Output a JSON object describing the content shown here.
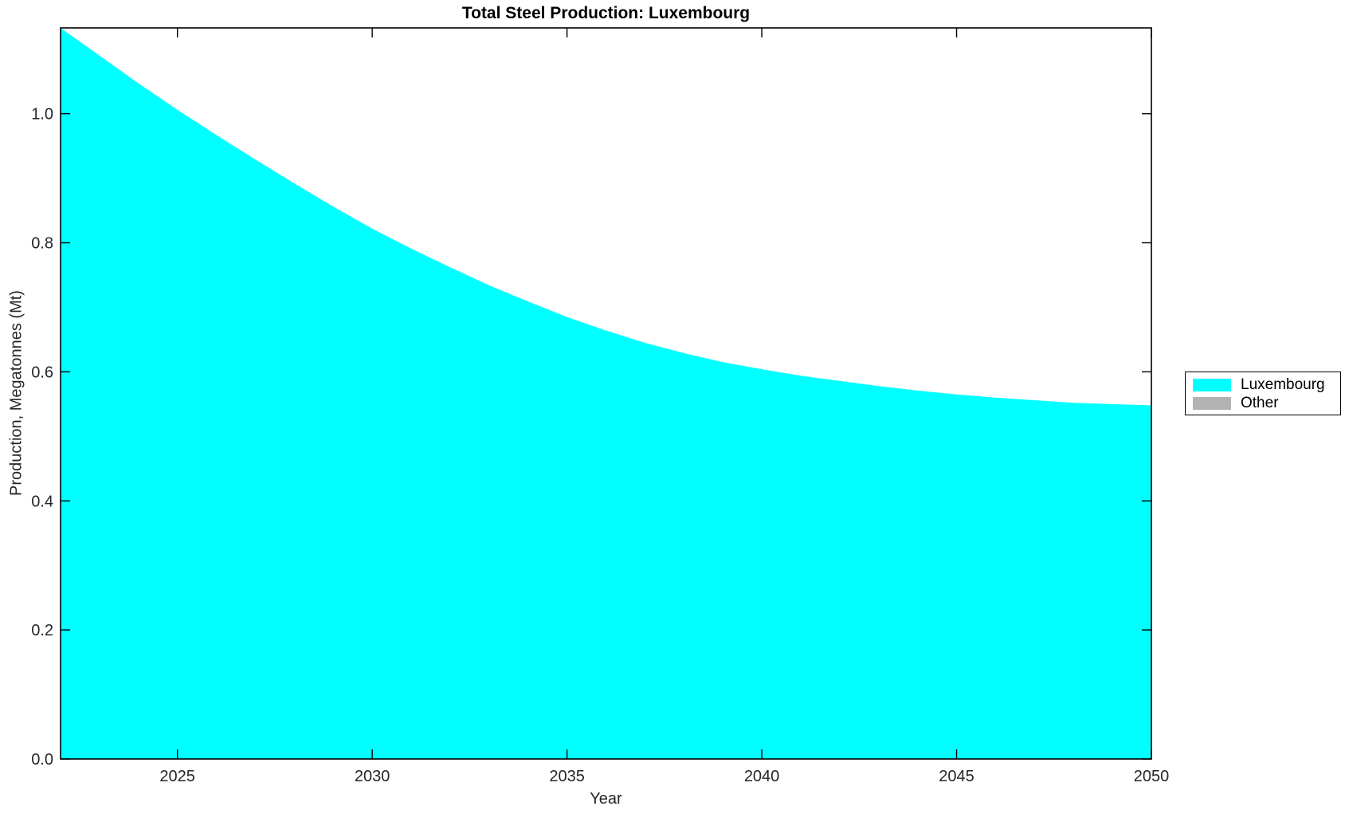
{
  "title": "Total Steel Production: Luxembourg",
  "axes": {
    "xlabel": "Year",
    "ylabel": "Production, Megatonnes (Mt)"
  },
  "legend": {
    "entries": [
      {
        "label": "Luxembourg",
        "color": "#00FFFF"
      },
      {
        "label": "Other",
        "color": "#B3B3B3"
      }
    ]
  },
  "colors": {
    "background": "#FFFFFF",
    "axis": "#000000",
    "tick_text": "#262626",
    "area_fill": "#00FFFF"
  },
  "chart_data": {
    "type": "area",
    "stacked": true,
    "title": "Total Steel Production: Luxembourg",
    "xlabel": "Year",
    "ylabel": "Production, Megatonnes (Mt)",
    "x": [
      2022,
      2023,
      2024,
      2025,
      2026,
      2027,
      2028,
      2029,
      2030,
      2031,
      2032,
      2033,
      2034,
      2035,
      2036,
      2037,
      2038,
      2039,
      2040,
      2041,
      2042,
      2043,
      2044,
      2045,
      2046,
      2047,
      2048,
      2049,
      2050
    ],
    "series": [
      {
        "name": "Luxembourg",
        "color": "#00FFFF",
        "values": [
          1.133,
          1.09,
          1.047,
          1.006,
          0.967,
          0.929,
          0.892,
          0.856,
          0.822,
          0.791,
          0.762,
          0.734,
          0.709,
          0.685,
          0.664,
          0.645,
          0.629,
          0.615,
          0.604,
          0.594,
          0.586,
          0.578,
          0.571,
          0.565,
          0.56,
          0.556,
          0.552,
          0.55,
          0.548
        ]
      },
      {
        "name": "Other",
        "color": "#B3B3B3",
        "values": [
          0,
          0,
          0,
          0,
          0,
          0,
          0,
          0,
          0,
          0,
          0,
          0,
          0,
          0,
          0,
          0,
          0,
          0,
          0,
          0,
          0,
          0,
          0,
          0,
          0,
          0,
          0,
          0,
          0
        ]
      }
    ],
    "xlim": [
      2022,
      2050
    ],
    "ylim": [
      0,
      1.133
    ],
    "x_ticks": {
      "values": [
        2025,
        2030,
        2035,
        2040,
        2045,
        2050
      ],
      "labels": [
        "2025",
        "2030",
        "2035",
        "2040",
        "2045",
        "2050"
      ]
    },
    "y_ticks": {
      "values": [
        0.0,
        0.2,
        0.4,
        0.6,
        0.8,
        1.0
      ],
      "labels": [
        "0.0",
        "0.2",
        "0.4",
        "0.6",
        "0.8",
        "1.0"
      ]
    },
    "grid": false,
    "legend_position": "right-outside",
    "legend_entries": [
      "Luxembourg",
      "Other"
    ]
  }
}
